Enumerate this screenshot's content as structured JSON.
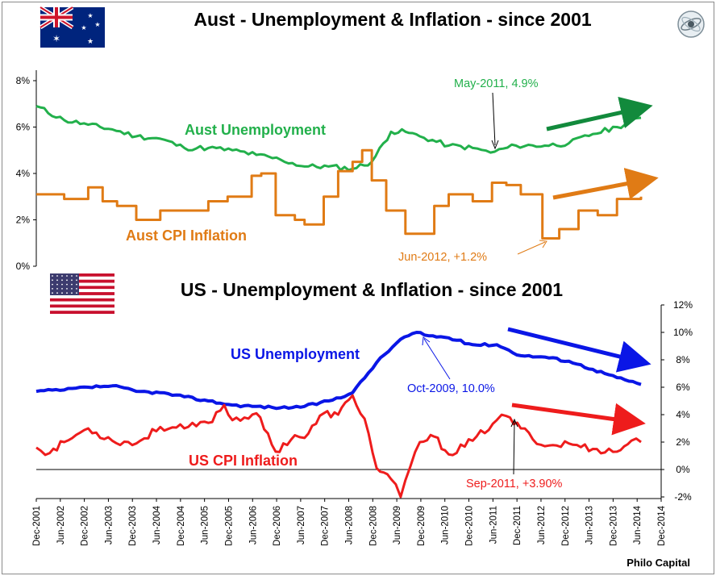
{
  "top_title": "Aust - Unemployment & Inflation - since 2001",
  "bottom_title": "US - Unemployment & Inflation - since 2001",
  "credit": "Philo Capital",
  "icons": {
    "top_flag": "australia-flag-icon",
    "bottom_flag": "usa-flag-icon",
    "logo": "philo-capital-logo-icon"
  },
  "colors": {
    "aust_unemployment": "#22b04b",
    "aust_cpi": "#e07b15",
    "us_unemployment": "#0a16e6",
    "us_cpi": "#ee1c1c",
    "aust_arrow": "#128a3c"
  },
  "chart_data": [
    {
      "type": "line",
      "title": "Aust - Unemployment & Inflation - since 2001",
      "ylim": [
        0,
        8
      ],
      "yticks": [
        "0%",
        "2%",
        "4%",
        "6%",
        "8%"
      ],
      "series": [
        {
          "name": "Aust Unemployment",
          "color": "#22b04b",
          "x": [
            2001.92,
            2002.5,
            2003.0,
            2003.5,
            2004.0,
            2004.5,
            2005.0,
            2005.5,
            2006.0,
            2006.5,
            2007.0,
            2007.5,
            2008.0,
            2008.5,
            2008.9,
            2009.3,
            2009.6,
            2009.9,
            2010.5,
            2011.0,
            2011.37,
            2011.9,
            2012.5,
            2013.0,
            2013.5,
            2014.0,
            2014.5
          ],
          "values": [
            6.9,
            6.3,
            6.1,
            5.9,
            5.6,
            5.5,
            5.1,
            5.1,
            5.0,
            4.8,
            4.6,
            4.3,
            4.3,
            4.2,
            4.5,
            5.8,
            5.8,
            5.6,
            5.2,
            5.1,
            4.9,
            5.2,
            5.2,
            5.3,
            5.7,
            6.0,
            6.4
          ]
        },
        {
          "name": "Aust CPI Inflation",
          "color": "#e07b15",
          "x": [
            2001.92,
            2002.5,
            2003.0,
            2003.3,
            2003.6,
            2004.0,
            2004.5,
            2005.0,
            2005.5,
            2005.9,
            2006.4,
            2006.6,
            2006.9,
            2007.3,
            2007.5,
            2007.9,
            2008.2,
            2008.5,
            2008.7,
            2008.9,
            2009.2,
            2009.6,
            2009.9,
            2010.2,
            2010.5,
            2011.0,
            2011.4,
            2011.7,
            2012.0,
            2012.45,
            2012.8,
            2013.2,
            2013.6,
            2014.0,
            2014.5
          ],
          "values": [
            3.1,
            2.9,
            3.4,
            2.8,
            2.6,
            2.0,
            2.4,
            2.4,
            2.8,
            3.0,
            3.9,
            4.0,
            2.2,
            2.0,
            1.8,
            3.0,
            4.1,
            4.5,
            5.0,
            3.7,
            2.4,
            1.4,
            1.4,
            2.6,
            3.1,
            2.8,
            3.6,
            3.5,
            3.1,
            1.2,
            1.6,
            2.4,
            2.2,
            2.9,
            3.0
          ]
        }
      ],
      "annotations": [
        "May-2011, 4.9%",
        "Jun-2012, +1.2%"
      ]
    },
    {
      "type": "line",
      "title": "US - Unemployment & Inflation - since 2001",
      "ylim": [
        -2,
        12
      ],
      "yticks": [
        "-2%",
        "0%",
        "2%",
        "4%",
        "6%",
        "8%",
        "10%",
        "12%"
      ],
      "series": [
        {
          "name": "US Unemployment",
          "color": "#0a16e6",
          "x": [
            2001.92,
            2002.5,
            2003.0,
            2003.5,
            2004.0,
            2004.5,
            2005.0,
            2005.5,
            2006.0,
            2006.5,
            2007.0,
            2007.5,
            2008.0,
            2008.5,
            2009.0,
            2009.5,
            2009.83,
            2010.0,
            2010.5,
            2011.0,
            2011.5,
            2012.0,
            2012.5,
            2013.0,
            2013.5,
            2014.0,
            2014.5
          ],
          "values": [
            5.7,
            5.8,
            6.0,
            6.1,
            5.7,
            5.6,
            5.3,
            5.0,
            4.7,
            4.6,
            4.5,
            4.6,
            5.0,
            5.6,
            7.8,
            9.5,
            10.0,
            9.8,
            9.6,
            9.1,
            9.1,
            8.3,
            8.2,
            7.9,
            7.3,
            6.7,
            6.2
          ]
        },
        {
          "name": "US CPI Inflation",
          "color": "#ee1c1c",
          "x": [
            2001.92,
            2002.2,
            2002.5,
            2003.0,
            2003.5,
            2004.0,
            2004.5,
            2005.0,
            2005.5,
            2005.83,
            2006.0,
            2006.5,
            2006.9,
            2007.3,
            2007.5,
            2007.9,
            2008.2,
            2008.5,
            2008.75,
            2009.0,
            2009.3,
            2009.5,
            2009.7,
            2009.9,
            2010.2,
            2010.5,
            2011.0,
            2011.5,
            2011.7,
            2012.0,
            2012.5,
            2013.0,
            2013.5,
            2014.0,
            2014.3,
            2014.5
          ],
          "values": [
            1.6,
            1.2,
            2.0,
            3.0,
            2.1,
            1.9,
            3.1,
            3.0,
            3.4,
            4.7,
            3.6,
            4.1,
            1.3,
            2.5,
            2.3,
            4.1,
            4.0,
            5.4,
            3.7,
            0.1,
            -0.7,
            -2.0,
            0.2,
            2.0,
            2.4,
            1.1,
            2.1,
            3.6,
            3.9,
            3.0,
            1.7,
            1.9,
            1.5,
            1.3,
            2.1,
            2.0
          ]
        }
      ],
      "annotations": [
        "Oct-2009, 10.0%",
        "Sep-2011, +3.90%"
      ]
    }
  ],
  "x_axis": {
    "labels": [
      "Dec-2001",
      "Jun-2002",
      "Dec-2002",
      "Jun-2003",
      "Dec-2003",
      "Jun-2004",
      "Dec-2004",
      "Jun-2005",
      "Dec-2005",
      "Jun-2006",
      "Dec-2006",
      "Jun-2007",
      "Dec-2007",
      "Jun-2008",
      "Dec-2008",
      "Jun-2009",
      "Dec-2009",
      "Jun-2010",
      "Dec-2010",
      "Jun-2011",
      "Dec-2011",
      "Jun-2012",
      "Dec-2012",
      "Jun-2013",
      "Dec-2013",
      "Jun-2014",
      "Dec-2014"
    ],
    "range": [
      2001.92,
      2014.92
    ]
  }
}
